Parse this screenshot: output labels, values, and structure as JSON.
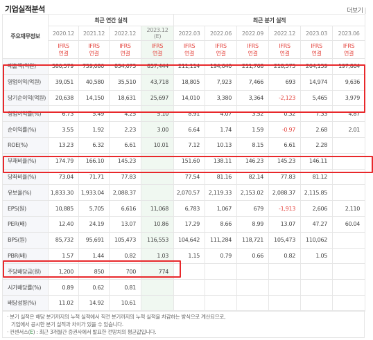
{
  "section": {
    "title": "기업실적분석",
    "more_label": "더보기",
    "more_sep": "|"
  },
  "header": {
    "label_head": "주요재무정보",
    "annual_group": "최근 연간 실적",
    "quarter_group": "최근 분기 실적",
    "periods": [
      "2020.12",
      "2021.12",
      "2022.12",
      "2023.12",
      "2022.03",
      "2022.06",
      "2022.09",
      "2022.12",
      "2023.03",
      "2023.06"
    ],
    "estimate_mark": "(E)",
    "ifrs_top": "IFRS",
    "ifrs_bottom": "연결"
  },
  "rows": [
    {
      "label": "매출액(억원)",
      "values": [
        "580,579",
        "739,080",
        "834,673",
        "857,444",
        "211,114",
        "194,640",
        "211,768",
        "218,575",
        "204,159",
        "197,864"
      ]
    },
    {
      "label": "영업이익(억원)",
      "values": [
        "39,051",
        "40,580",
        "35,510",
        "43,718",
        "18,805",
        "7,923",
        "7,466",
        "693",
        "14,974",
        "9,636"
      ]
    },
    {
      "label": "당기순이익(억원)",
      "values": [
        "20,638",
        "14,150",
        "18,631",
        "25,697",
        "14,010",
        "3,380",
        "3,364",
        "-2,123",
        "5,465",
        "3,979"
      ]
    },
    {
      "label": "영업이익률(%)",
      "values": [
        "6.73",
        "5.49",
        "4.25",
        "5.10",
        "8.91",
        "4.07",
        "3.52",
        "0.32",
        "7.33",
        "4.87"
      ]
    },
    {
      "label": "순이익률(%)",
      "values": [
        "3.55",
        "1.92",
        "2.23",
        "3.00",
        "6.64",
        "1.74",
        "1.59",
        "-0.97",
        "2.68",
        "2.01"
      ]
    },
    {
      "label": "ROE(%)",
      "values": [
        "13.23",
        "6.32",
        "6.61",
        "10.01",
        "7.12",
        "10.13",
        "8.15",
        "6.61",
        "2.28",
        ""
      ]
    },
    {
      "label": "부채비율(%)",
      "values": [
        "174.79",
        "166.10",
        "145.23",
        "",
        "151.60",
        "138.11",
        "146.23",
        "145.23",
        "146.11",
        ""
      ]
    },
    {
      "label": "당좌비율(%)",
      "values": [
        "73.04",
        "71.71",
        "77.83",
        "",
        "77.54",
        "81.16",
        "82.14",
        "77.83",
        "81.12",
        ""
      ]
    },
    {
      "label": "유보율(%)",
      "values": [
        "1,833.30",
        "1,933.04",
        "2,088.37",
        "",
        "2,070.57",
        "2,119.33",
        "2,153.02",
        "2,088.37",
        "2,115.85",
        ""
      ]
    },
    {
      "label": "EPS(원)",
      "values": [
        "10,885",
        "5,705",
        "6,616",
        "11,068",
        "6,783",
        "1,067",
        "679",
        "-1,913",
        "2,606",
        "2,110"
      ]
    },
    {
      "label": "PER(배)",
      "values": [
        "12.40",
        "24.19",
        "13.07",
        "10.86",
        "17.29",
        "8.66",
        "8.99",
        "13.07",
        "47.27",
        "60.04"
      ]
    },
    {
      "label": "BPS(원)",
      "values": [
        "85,732",
        "95,691",
        "105,473",
        "116,553",
        "104,642",
        "111,284",
        "118,721",
        "105,473",
        "110,062",
        ""
      ]
    },
    {
      "label": "PBR(배)",
      "values": [
        "1.57",
        "1.44",
        "0.82",
        "1.03",
        "1.15",
        "0.79",
        "0.66",
        "0.82",
        "1.05",
        ""
      ]
    },
    {
      "label": "주당배당금(원)",
      "values": [
        "1,200",
        "850",
        "700",
        "774",
        "",
        "",
        "",
        "",
        "",
        ""
      ]
    },
    {
      "label": "시가배당률(%)",
      "values": [
        "0.89",
        "0.62",
        "0.81",
        "",
        "",
        "",
        "",
        "",
        "",
        ""
      ]
    },
    {
      "label": "배당성향(%)",
      "values": [
        "11.02",
        "14.92",
        "10.61",
        "",
        "",
        "",
        "",
        "",
        "",
        ""
      ]
    }
  ],
  "notes": {
    "line1": "· 분기 실적은 해당 분기까지의 누적 실적에서 직전 분기까지의 누적 실적을 차감하는 방식으로 계산되므로,",
    "line2": "기업에서 공시한 분기 실적과 차이가 있을 수 있습니다.",
    "line3_pre": "· 컨센서스(",
    "line3_e": "E",
    "line3_post": ") : 최근 3개월간 증권사에서 발표한 전망치의 평균값입니다."
  },
  "colors": {
    "highlight_box": "#e8282b",
    "negative": "#e4443e",
    "estimate_bg": "#f0f8f1",
    "ifrs": "#e4443e"
  }
}
